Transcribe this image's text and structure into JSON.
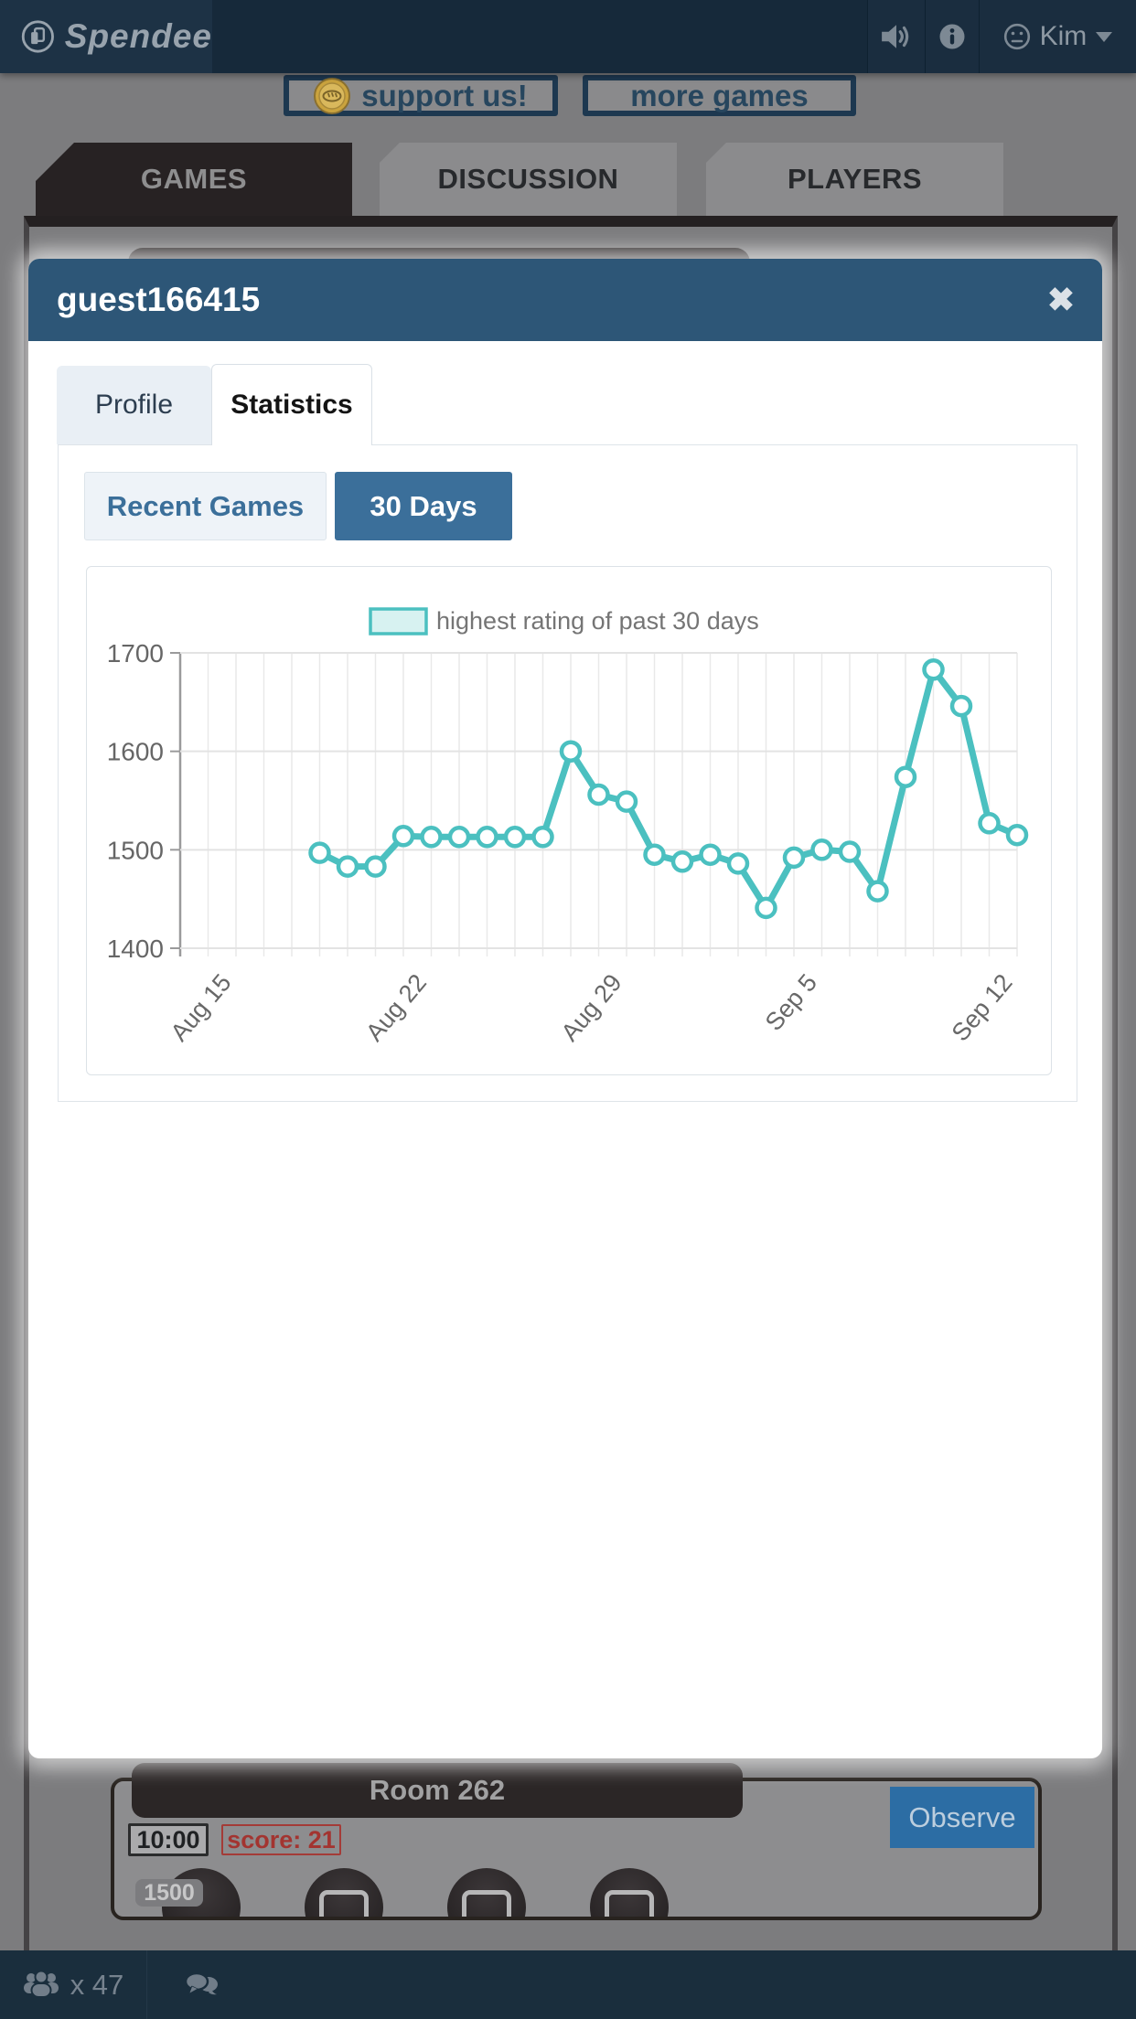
{
  "header": {
    "brand": "Spendee",
    "user_name": "Kim"
  },
  "promo": {
    "support_label": "support us!",
    "more_games_label": "more games"
  },
  "site_tabs": [
    {
      "label": "GAMES",
      "active": true
    },
    {
      "label": "DISCUSSION",
      "active": false
    },
    {
      "label": "PLAYERS",
      "active": false
    }
  ],
  "modal": {
    "title": "guest166415",
    "close_glyph": "✖",
    "tabs": [
      {
        "label": "Profile",
        "active": false
      },
      {
        "label": "Statistics",
        "active": true
      }
    ],
    "range_buttons": [
      {
        "label": "Recent Games",
        "active": false
      },
      {
        "label": "30 Days",
        "active": true
      }
    ],
    "chart_data": {
      "type": "line",
      "title": "",
      "legend": [
        "highest rating of past 30 days"
      ],
      "legend_position": "top",
      "grid": true,
      "ylim": [
        1400,
        1700
      ],
      "y_ticks": [
        1400,
        1500,
        1600,
        1700
      ],
      "x_axis": {
        "days": 30,
        "tick_positions": [
          2,
          9,
          16,
          23,
          30
        ],
        "tick_labels": [
          "Aug 15",
          "Aug 22",
          "Aug 29",
          "Sep 5",
          "Sep 12"
        ]
      },
      "series": [
        {
          "name": "highest rating of past 30 days",
          "color": "#4bc0c0",
          "marker": "circle-open",
          "start_day_index": 5,
          "values": [
            1497,
            1483,
            1483,
            1514,
            1513,
            1513,
            1513,
            1513,
            1513,
            1600,
            1556,
            1549,
            1495,
            1488,
            1495,
            1486,
            1441,
            1492,
            1500,
            1498,
            1458,
            1574,
            1683,
            1646,
            1527,
            1515
          ]
        }
      ]
    }
  },
  "room": {
    "title": "Room 262",
    "observe_label": "Observe",
    "timer": "10:00",
    "score": "score: 21",
    "rating_badge": "1500",
    "seat_count": 4
  },
  "footer": {
    "player_count": "x 47"
  },
  "colors": {
    "accent_teal": "#4bc0c0",
    "modal_header_blue": "#2d5677",
    "button_blue": "#3b6f9a",
    "observe_blue": "#2c6da4",
    "score_red": "#a33430",
    "coin_gold": "#caa33e",
    "header_navy": "#16293a"
  }
}
